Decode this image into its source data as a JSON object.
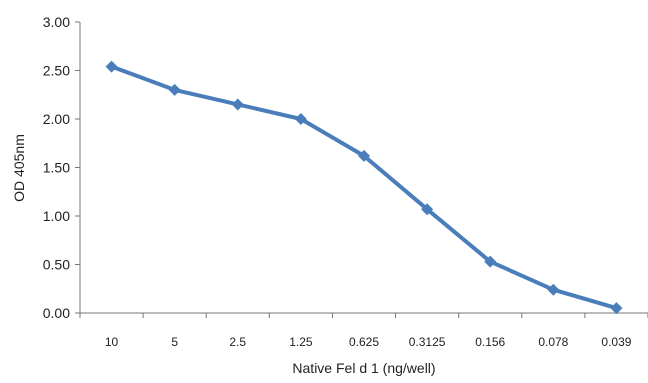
{
  "chart_data": {
    "type": "line",
    "title": "",
    "xlabel": "Native Fel d 1 (ng/well)",
    "ylabel": "OD 405nm",
    "categories": [
      "10",
      "5",
      "2.5",
      "1.25",
      "0.625",
      "0.3125",
      "0.156",
      "0.078",
      "0.039"
    ],
    "series": [
      {
        "values": [
          2.54,
          2.3,
          2.15,
          2.0,
          1.62,
          1.07,
          0.53,
          0.24,
          0.05
        ],
        "color": "#4A7EBB",
        "marker": "diamond"
      }
    ],
    "ylim": [
      0,
      3
    ],
    "yticks": [
      0,
      0.5,
      1.0,
      1.5,
      2.0,
      2.5,
      3.0
    ],
    "ytick_labels": [
      "0.00",
      "0.50",
      "1.00",
      "1.50",
      "2.00",
      "2.50",
      "3.00"
    ],
    "grid": false,
    "legend": "none"
  }
}
